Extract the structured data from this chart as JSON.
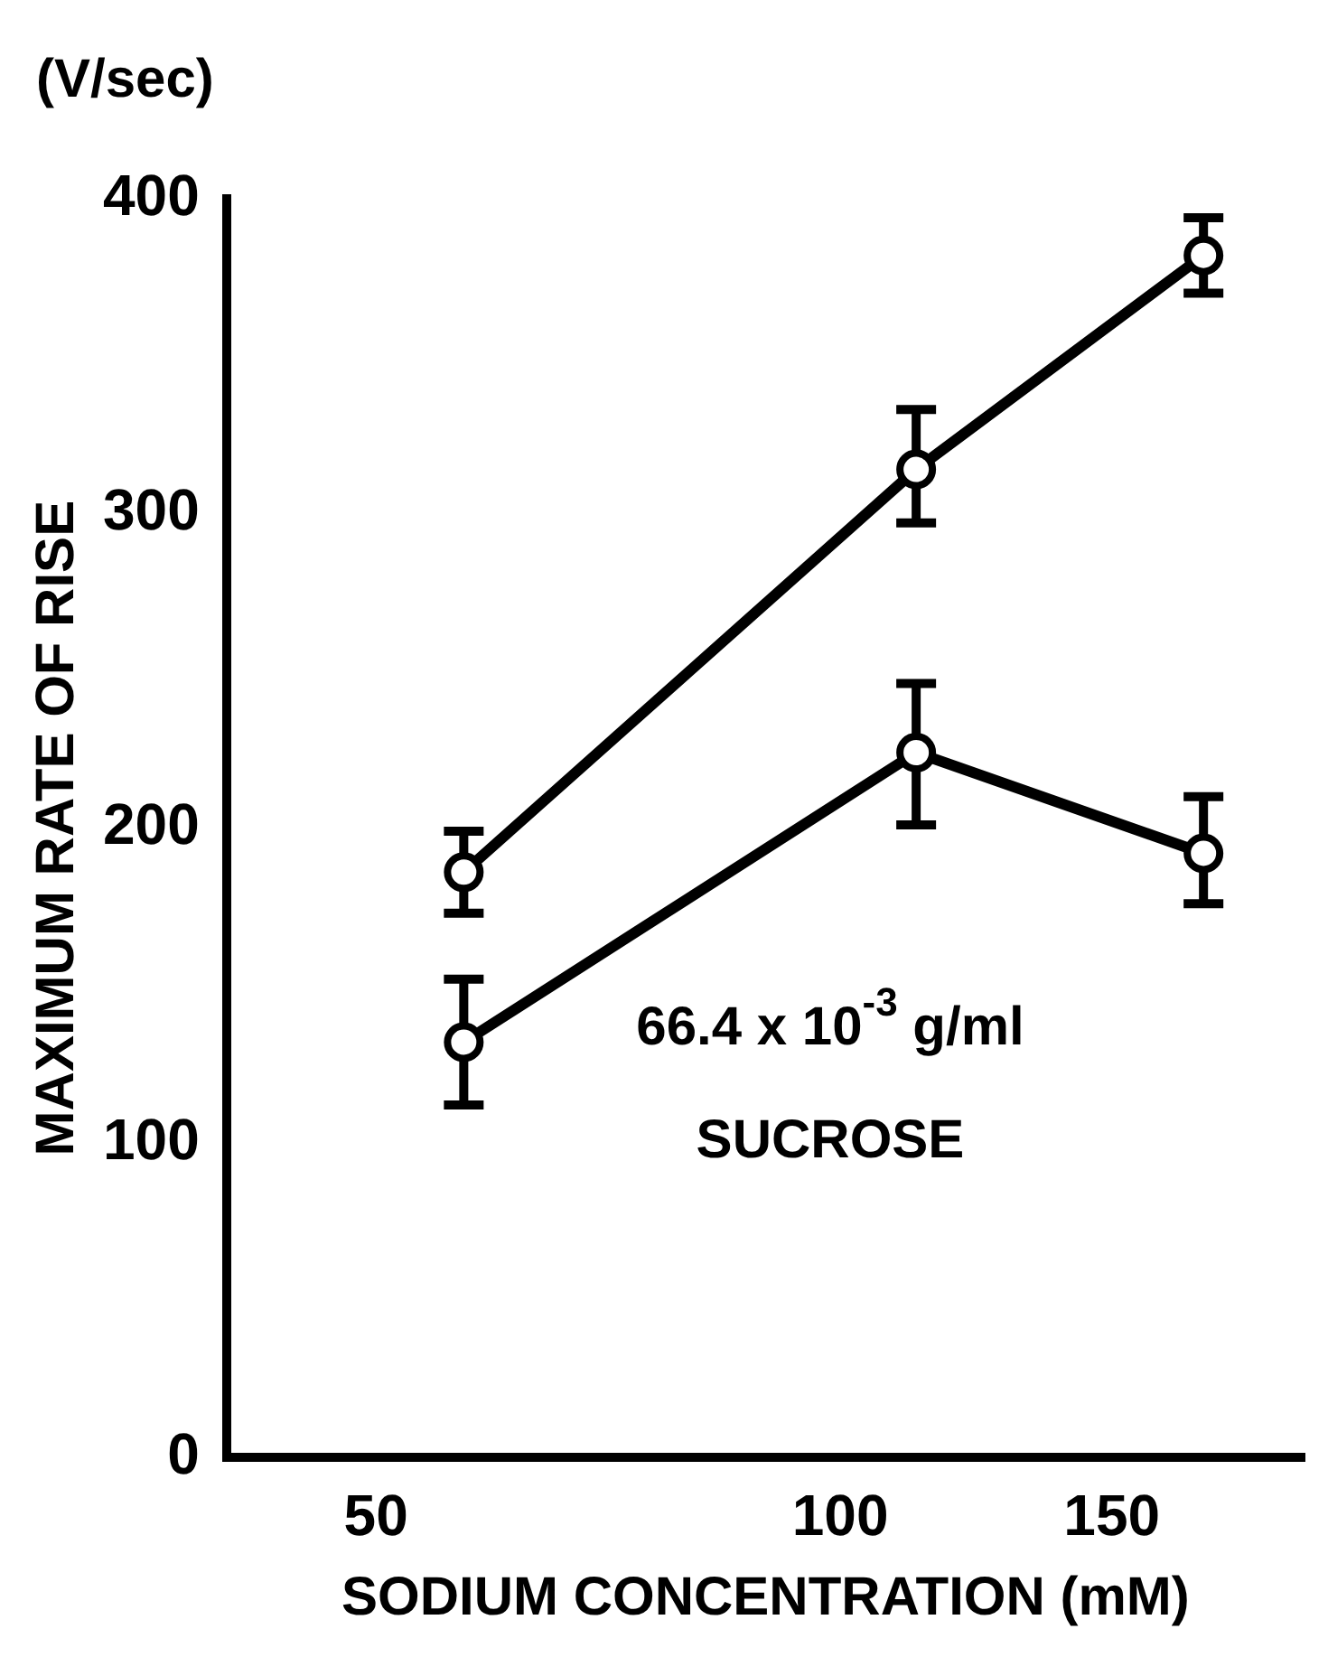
{
  "chart_data": {
    "type": "line",
    "xlabel": "SODIUM CONCENTRATION (mM)",
    "ylabel": "MAXIMUM RATE OF RISE",
    "annotations": [
      "(V/sec)",
      "66.4 x 10$^{-3}$ g/ml",
      "SUCROSE"
    ],
    "x": [
      57,
      112,
      172
    ],
    "series": [
      {
        "color": "#000000",
        "values": [
          186,
          314,
          382
        ],
        "errors": [
          [
            173,
            199
          ],
          [
            297,
            333
          ],
          [
            370,
            394
          ]
        ]
      },
      {
        "color": "#000000",
        "values": [
          132,
          224,
          192
        ],
        "errors": [
          [
            112,
            152
          ],
          [
            201,
            246
          ],
          [
            176,
            210
          ]
        ]
      }
    ],
    "log": "x",
    "xlim": [
      40,
      200
    ],
    "xticks": [
      50,
      100,
      150
    ],
    "ylim": [
      0,
      400
    ],
    "yticks": [
      0,
      100,
      200,
      300,
      400
    ],
    "grid": false,
    "legend": false,
    "marker": "circle",
    "line_style": "solid"
  }
}
